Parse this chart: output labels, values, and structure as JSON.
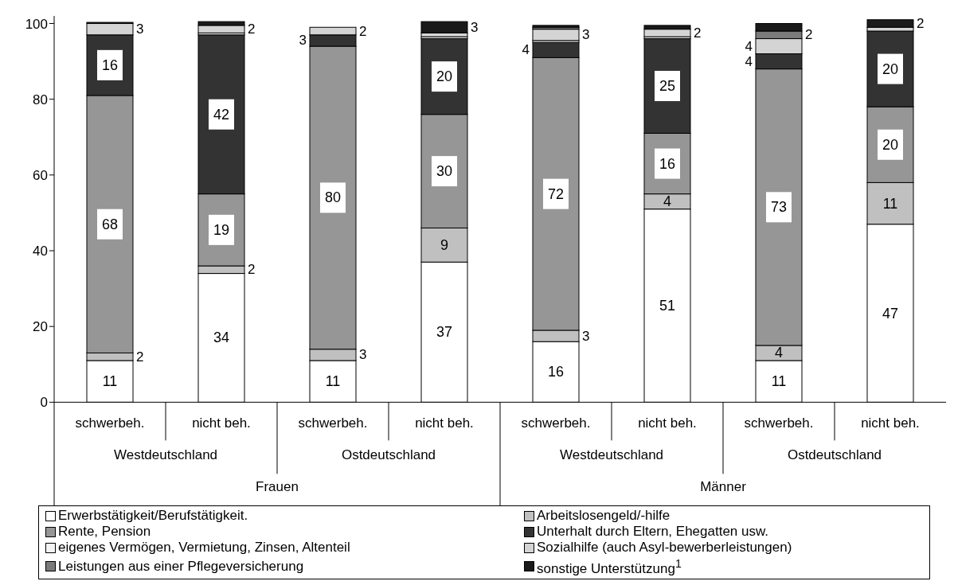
{
  "chart_data": {
    "type": "bar",
    "stacked": true,
    "categories": [
      "schwerbeh.",
      "nicht beh.",
      "schwerbeh.",
      "nicht beh.",
      "schwerbeh.",
      "nicht beh.",
      "schwerbeh.",
      "nicht beh."
    ],
    "annotations": [
      "Westdeutschland",
      "Ostdeutschland",
      "Westdeutschland",
      "Ostdeutschland",
      "Frauen",
      "Männer"
    ],
    "ylim": [
      0,
      102
    ],
    "yticks": [
      0,
      20,
      40,
      60,
      80,
      100
    ],
    "grid": false,
    "legend": "bottom",
    "series": [
      {
        "name": "Erwerbstätigkeit/Berufstätigkeit.",
        "color": "#ffffff",
        "values": [
          11,
          34,
          11,
          37,
          16,
          51,
          11,
          47
        ],
        "value_labels": [
          "11",
          "34",
          "11",
          "37",
          "16",
          "51",
          "11",
          "47"
        ]
      },
      {
        "name": "Arbeitslosengeld/-hilfe",
        "color": "#c0c0c0",
        "values": [
          2,
          2,
          3,
          9,
          3,
          4,
          4,
          11
        ],
        "value_labels": [
          "2",
          "2",
          "3",
          "9",
          "3",
          "4",
          "4",
          "11"
        ]
      },
      {
        "name": "Rente, Pension",
        "color": "#969696",
        "values": [
          68,
          19,
          80,
          30,
          72,
          16,
          73,
          20
        ],
        "value_labels": [
          "68",
          "19",
          "80",
          "30",
          "72",
          "16",
          "73",
          "20"
        ]
      },
      {
        "name": "Unterhalt durch Eltern, Ehegatten usw.",
        "color": "#333333",
        "values": [
          16,
          42,
          3,
          20,
          4,
          25,
          4,
          20
        ],
        "value_labels": [
          "16",
          "42",
          "3",
          "20",
          "4",
          "25",
          "4",
          "20"
        ]
      },
      {
        "name": "eigenes Vermögen, Vermietung, Zinsen, Altenteil",
        "color": "#f4f4f4",
        "values": [
          0,
          0.5,
          0,
          0.5,
          0.5,
          0.5,
          0,
          0
        ],
        "value_labels": [
          null,
          null,
          null,
          null,
          null,
          null,
          null,
          null
        ]
      },
      {
        "name": "Sozialhilfe (auch Asyl-bewerberleistungen)",
        "color": "#d4d4d4",
        "values": [
          3,
          2,
          2,
          1,
          3,
          2,
          4,
          1
        ],
        "value_labels": [
          "3",
          "2",
          "2",
          null,
          "3",
          "2",
          "4",
          null
        ]
      },
      {
        "name": "Leistungen aus einer Pflegeversicherung",
        "color": "#7a7a7a",
        "values": [
          0,
          0,
          0,
          0,
          0.5,
          0,
          2,
          0
        ],
        "value_labels": [
          null,
          null,
          null,
          null,
          null,
          null,
          "2",
          null
        ]
      },
      {
        "name": "sonstige Unterstützung$^{1}$",
        "color": "#1a1a1a",
        "values": [
          0.3,
          1,
          0,
          3,
          0.5,
          1,
          2,
          2
        ],
        "value_labels": [
          null,
          null,
          null,
          "3",
          null,
          null,
          null,
          "2"
        ]
      }
    ]
  }
}
